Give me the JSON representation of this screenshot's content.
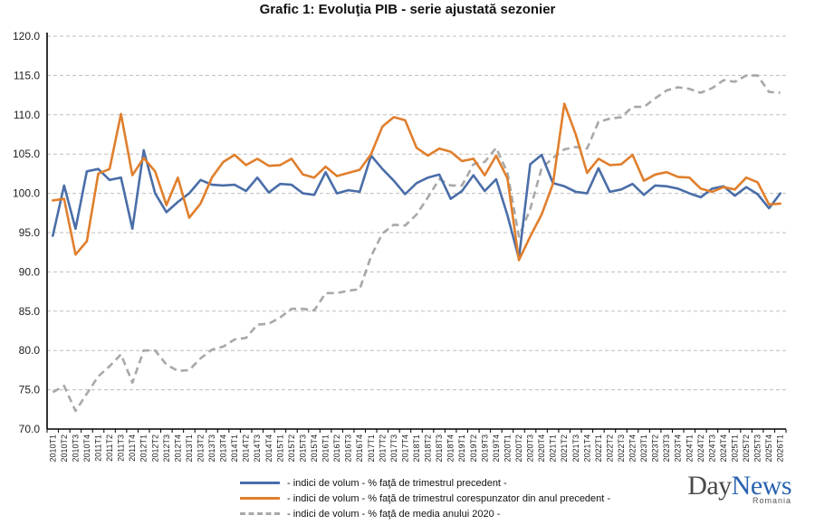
{
  "chart_data": {
    "type": "line",
    "title": "Grafic 1: Evoluţia PIB - serie ajustată sezonier",
    "xlabel": "",
    "ylabel": "",
    "ylim": [
      70,
      120
    ],
    "ytick_step": 5,
    "grid": true,
    "legend_position": "bottom",
    "categories": [
      "2010T1",
      "2010T2",
      "2010T3",
      "2010T4",
      "2011T1",
      "2011T2",
      "2011T3",
      "2011T4",
      "2012T1",
      "2012T2",
      "2012T3",
      "2012T4",
      "2013T1",
      "2013T2",
      "2013T3",
      "2013T4",
      "2014T1",
      "2014T2",
      "2014T3",
      "2014T4",
      "2015T1",
      "2015T2",
      "2015T3",
      "2015T4",
      "2016T1",
      "2016T2",
      "2016T3",
      "2016T4",
      "2017T1",
      "2017T2",
      "2017T3",
      "2017T4",
      "2018T1",
      "2018T2",
      "2018T3",
      "2018T4",
      "2019T1",
      "2019T2",
      "2019T3",
      "2019T4",
      "2020T1",
      "2020T2",
      "2020T3",
      "2020T4",
      "2021T1",
      "2021T2",
      "2021T3",
      "2021T4",
      "2022T1",
      "2022T2",
      "2022T3",
      "2022T4",
      "2023T1",
      "2023T2",
      "2023T3",
      "2023T4",
      "2024T1",
      "2024T2",
      "2024T3",
      "2024T4",
      "2025T1",
      "2025T2",
      "2025T3",
      "2025T4",
      "2026T1"
    ],
    "series": [
      {
        "name": "- indici de volum - % faţă de trimestrul precedent -",
        "color": "#4a6ea8",
        "dash": "solid",
        "values": [
          94.6,
          101.0,
          95.5,
          102.8,
          103.1,
          101.7,
          102.0,
          95.5,
          105.5,
          100.0,
          97.6,
          98.9,
          100.0,
          101.7,
          101.1,
          101.0,
          101.1,
          100.3,
          102.0,
          100.1,
          101.2,
          101.1,
          100.0,
          99.8,
          102.7,
          100.0,
          100.4,
          100.2,
          104.8,
          103.1,
          101.6,
          99.9,
          101.3,
          102.0,
          102.4,
          99.3,
          100.3,
          102.3,
          100.3,
          101.8,
          97.2,
          91.7,
          103.7,
          104.9,
          101.3,
          100.9,
          100.2,
          100.0,
          103.2,
          100.2,
          100.5,
          101.2,
          99.8,
          101.0,
          100.9,
          100.6,
          100.0,
          99.5,
          100.6,
          100.9,
          99.7,
          100.8,
          99.9,
          98.1,
          100.0
        ]
      },
      {
        "name": "- indici de volum - % faţă de trimestrul corespunzator din anul precedent -",
        "color": "#e07f2d",
        "dash": "solid",
        "values": [
          99.1,
          99.3,
          92.2,
          93.9,
          102.5,
          103.1,
          110.1,
          102.3,
          104.5,
          102.8,
          98.5,
          102.0,
          96.9,
          98.7,
          102.0,
          104.0,
          104.9,
          103.6,
          104.4,
          103.5,
          103.6,
          104.4,
          102.4,
          102.0,
          103.4,
          102.2,
          102.6,
          103.0,
          105.0,
          108.5,
          109.7,
          109.3,
          105.8,
          104.8,
          105.7,
          105.3,
          104.1,
          104.4,
          102.3,
          104.8,
          101.9,
          91.5,
          94.5,
          97.3,
          101.2,
          111.4,
          107.5,
          102.6,
          104.4,
          103.6,
          103.7,
          104.9,
          101.6,
          102.4,
          102.7,
          102.1,
          102.0,
          100.6,
          100.2,
          100.8,
          100.5,
          102.0,
          101.4,
          98.6,
          98.7
        ]
      },
      {
        "name": "- indici de volum - % faţă de media anului 2020 -",
        "color": "#a8a8a8",
        "dash": "dashed",
        "values": [
          74.7,
          75.5,
          72.3,
          74.5,
          76.7,
          78.0,
          79.5,
          75.9,
          80.0,
          80.0,
          78.2,
          77.4,
          77.5,
          79.0,
          80.1,
          80.5,
          81.4,
          81.6,
          83.3,
          83.4,
          84.2,
          85.3,
          85.3,
          85.1,
          87.3,
          87.3,
          87.6,
          87.8,
          92.0,
          94.9,
          96.0,
          95.9,
          97.3,
          99.5,
          101.8,
          101.0,
          101.0,
          103.7,
          104.0,
          105.8,
          102.6,
          94.5,
          98.0,
          103.2,
          104.5,
          105.6,
          105.9,
          105.7,
          109.1,
          109.5,
          109.7,
          111.0,
          111.0,
          112.1,
          113.1,
          113.5,
          113.3,
          112.8,
          113.4,
          114.4,
          114.2,
          115.0,
          115.0,
          112.9,
          112.8
        ]
      }
    ]
  },
  "watermark": {
    "main_a": "Day",
    "main_b": "News",
    "sub": "Romania"
  }
}
